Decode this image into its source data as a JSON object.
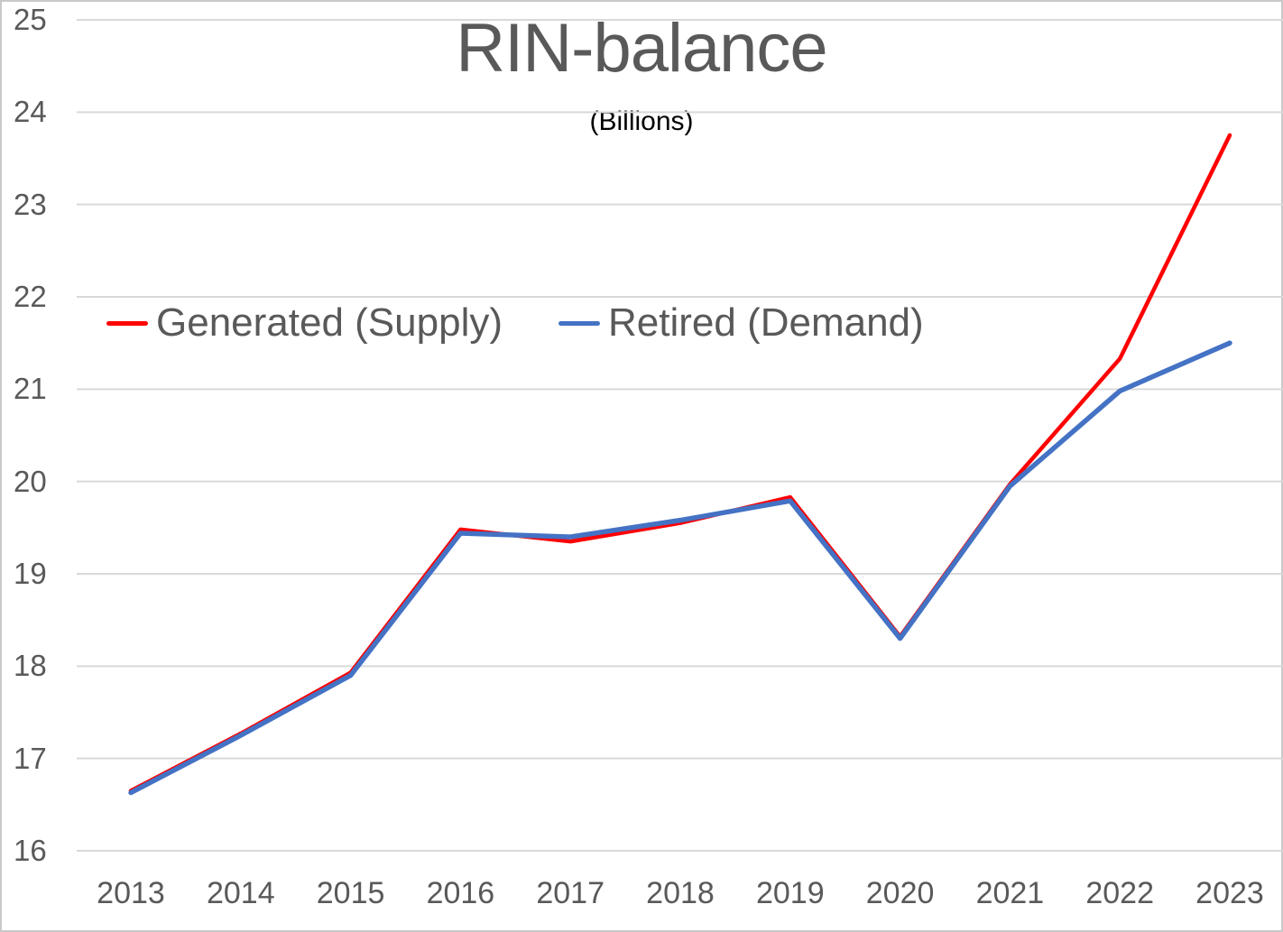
{
  "chart_data": {
    "type": "line",
    "title": "RIN-balance",
    "subtitle": "(Billions)",
    "x": [
      2013,
      2014,
      2015,
      2016,
      2017,
      2018,
      2019,
      2020,
      2021,
      2022,
      2023
    ],
    "series": [
      {
        "name": "Generated (Supply)",
        "color": "#ff0000",
        "values": [
          16.65,
          17.27,
          17.93,
          19.48,
          19.35,
          19.55,
          19.83,
          18.32,
          19.97,
          21.33,
          23.75
        ]
      },
      {
        "name": "Retired (Demand)",
        "color": "#4472c4",
        "values": [
          16.63,
          17.25,
          17.9,
          19.44,
          19.4,
          19.58,
          19.79,
          18.3,
          19.95,
          20.98,
          21.5
        ]
      }
    ],
    "ylim": [
      16,
      25
    ],
    "yticks": [
      16,
      17,
      18,
      19,
      20,
      21,
      22,
      23,
      24,
      25
    ],
    "grid": true,
    "grid_color": "#d9d9d9",
    "text_color": "#595959",
    "legend_position": "inside-upper-left"
  }
}
